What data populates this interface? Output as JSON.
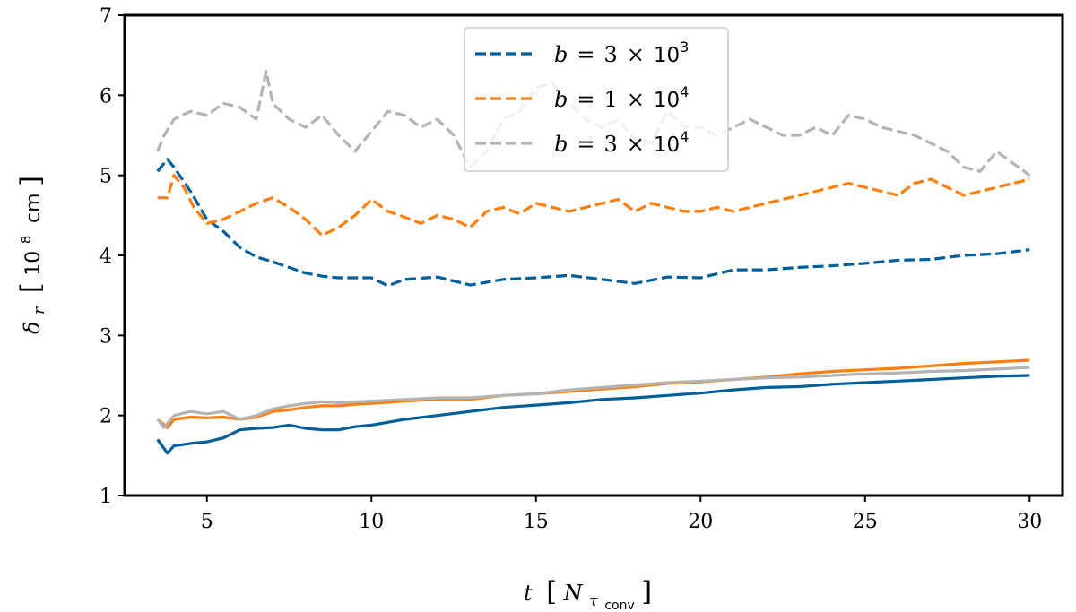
{
  "chart_data": {
    "type": "line",
    "xlabel": "t [N_τconv]",
    "xlabel_main": "t",
    "xlabel_unit": "N",
    "xlabel_sub1": "τ",
    "xlabel_sub2": "conv",
    "ylabel": "δr [10^8 cm]",
    "ylabel_main": "δ",
    "ylabel_sub": "r",
    "ylabel_unit_base": "10",
    "ylabel_unit_exp": "8",
    "ylabel_unit_rest": "cm",
    "xlim": [
      2.5,
      31.0
    ],
    "ylim": [
      1,
      7
    ],
    "xticks": [
      5,
      10,
      15,
      20,
      25,
      30
    ],
    "yticks": [
      1,
      2,
      3,
      4,
      5,
      6,
      7
    ],
    "legend_position": "upper-center",
    "legend_entries": [
      {
        "name": "b = 3 × 10³",
        "var": "b",
        "rel": "=",
        "mant": "3",
        "times": "×",
        "base": "10",
        "exp": "3",
        "color": "#005f99"
      },
      {
        "name": "b = 1 × 10⁴",
        "var": "b",
        "rel": "=",
        "mant": "1",
        "times": "×",
        "base": "10",
        "exp": "4",
        "color": "#ff7f0e"
      },
      {
        "name": "b = 3 × 10⁴",
        "var": "b",
        "rel": "=",
        "mant": "3",
        "times": "×",
        "base": "10",
        "exp": "4",
        "color": "#b3b3b3"
      }
    ],
    "series": [
      {
        "name": "b = 3 × 10³ (dashed)",
        "style": "dashed",
        "color": "#005f99",
        "x": [
          3.5,
          3.8,
          4.0,
          4.5,
          5.0,
          5.5,
          6.0,
          6.5,
          7.0,
          7.5,
          8.0,
          8.5,
          9.0,
          10.0,
          10.5,
          11.0,
          12.0,
          13.0,
          14.0,
          15.0,
          16.0,
          17.0,
          18.0,
          19.0,
          20.0,
          21.0,
          22.0,
          23.0,
          24.0,
          25.0,
          26.0,
          27.0,
          28.0,
          29.0,
          30.0
        ],
        "y": [
          5.05,
          5.2,
          5.1,
          4.8,
          4.45,
          4.3,
          4.1,
          3.98,
          3.92,
          3.85,
          3.78,
          3.74,
          3.72,
          3.72,
          3.62,
          3.7,
          3.73,
          3.63,
          3.7,
          3.72,
          3.75,
          3.7,
          3.65,
          3.73,
          3.72,
          3.82,
          3.82,
          3.85,
          3.87,
          3.9,
          3.94,
          3.95,
          4.0,
          4.02,
          4.07
        ]
      },
      {
        "name": "b = 1 × 10⁴ (dashed)",
        "style": "dashed",
        "color": "#ff7f0e",
        "x": [
          3.5,
          3.8,
          4.0,
          4.3,
          4.6,
          5.0,
          5.5,
          6.0,
          6.5,
          7.0,
          7.5,
          8.0,
          8.5,
          9.0,
          9.5,
          10.0,
          10.5,
          11.0,
          11.5,
          12.0,
          12.5,
          13.0,
          13.5,
          14.0,
          14.5,
          15.0,
          15.5,
          16.0,
          16.5,
          17.0,
          17.5,
          18.0,
          18.5,
          19.0,
          19.5,
          20.0,
          20.5,
          21.0,
          21.5,
          22.0,
          22.5,
          23.0,
          23.5,
          24.0,
          24.5,
          25.0,
          25.5,
          26.0,
          26.5,
          27.0,
          27.5,
          28.0,
          28.5,
          29.0,
          29.5,
          30.0
        ],
        "y": [
          4.72,
          4.72,
          5.0,
          4.85,
          4.6,
          4.4,
          4.45,
          4.55,
          4.65,
          4.72,
          4.6,
          4.45,
          4.25,
          4.35,
          4.5,
          4.7,
          4.55,
          4.48,
          4.4,
          4.5,
          4.45,
          4.35,
          4.55,
          4.6,
          4.52,
          4.65,
          4.6,
          4.55,
          4.6,
          4.65,
          4.7,
          4.55,
          4.65,
          4.6,
          4.55,
          4.55,
          4.6,
          4.55,
          4.6,
          4.65,
          4.7,
          4.75,
          4.8,
          4.85,
          4.9,
          4.85,
          4.8,
          4.75,
          4.9,
          4.95,
          4.85,
          4.75,
          4.8,
          4.85,
          4.9,
          4.95
        ]
      },
      {
        "name": "b = 3 × 10⁴ (dashed)",
        "style": "dashed",
        "color": "#b3b3b3",
        "x": [
          3.5,
          3.7,
          4.0,
          4.5,
          5.0,
          5.5,
          6.0,
          6.5,
          6.8,
          7.0,
          7.5,
          8.0,
          8.5,
          9.0,
          9.5,
          10.0,
          10.5,
          11.0,
          11.5,
          12.0,
          12.5,
          13.0,
          13.5,
          14.0,
          14.5,
          15.0,
          15.5,
          16.0,
          16.5,
          17.0,
          17.5,
          18.0,
          18.5,
          19.0,
          19.5,
          20.0,
          20.5,
          21.0,
          21.5,
          22.0,
          22.5,
          23.0,
          23.5,
          24.0,
          24.5,
          25.0,
          25.5,
          26.0,
          26.5,
          27.0,
          27.5,
          28.0,
          28.5,
          29.0,
          29.5,
          30.0
        ],
        "y": [
          5.3,
          5.5,
          5.7,
          5.8,
          5.75,
          5.9,
          5.85,
          5.7,
          6.3,
          5.9,
          5.7,
          5.6,
          5.75,
          5.5,
          5.3,
          5.55,
          5.8,
          5.75,
          5.6,
          5.7,
          5.5,
          5.1,
          5.3,
          5.7,
          5.8,
          6.1,
          6.15,
          5.9,
          5.7,
          5.6,
          5.7,
          5.45,
          5.4,
          5.8,
          5.6,
          5.6,
          5.5,
          5.6,
          5.7,
          5.6,
          5.5,
          5.5,
          5.6,
          5.5,
          5.75,
          5.7,
          5.6,
          5.55,
          5.5,
          5.4,
          5.3,
          5.1,
          5.05,
          5.3,
          5.15,
          5.0
        ]
      },
      {
        "name": "b = 3 × 10³ (solid)",
        "style": "solid",
        "color": "#005f99",
        "x": [
          3.5,
          3.8,
          4.0,
          4.5,
          5.0,
          5.5,
          6.0,
          6.5,
          7.0,
          7.5,
          8.0,
          8.5,
          9.0,
          9.5,
          10.0,
          11.0,
          12.0,
          13.0,
          14.0,
          15.0,
          16.0,
          17.0,
          18.0,
          19.0,
          20.0,
          21.0,
          22.0,
          23.0,
          24.0,
          25.0,
          26.0,
          27.0,
          28.0,
          29.0,
          30.0
        ],
        "y": [
          1.7,
          1.53,
          1.62,
          1.65,
          1.67,
          1.72,
          1.82,
          1.84,
          1.85,
          1.88,
          1.84,
          1.82,
          1.82,
          1.86,
          1.88,
          1.95,
          2.0,
          2.05,
          2.1,
          2.13,
          2.16,
          2.2,
          2.22,
          2.25,
          2.28,
          2.32,
          2.35,
          2.36,
          2.39,
          2.41,
          2.43,
          2.45,
          2.47,
          2.49,
          2.5
        ]
      },
      {
        "name": "b = 1 × 10⁴ (solid)",
        "style": "solid",
        "color": "#ff7f0e",
        "x": [
          3.5,
          3.8,
          4.0,
          4.5,
          5.0,
          5.5,
          6.0,
          6.5,
          7.0,
          7.5,
          8.0,
          8.5,
          9.0,
          9.5,
          10.0,
          11.0,
          12.0,
          13.0,
          14.0,
          15.0,
          16.0,
          17.0,
          18.0,
          19.0,
          20.0,
          21.0,
          22.0,
          23.0,
          24.0,
          25.0,
          26.0,
          27.0,
          28.0,
          29.0,
          30.0
        ],
        "y": [
          1.95,
          1.85,
          1.95,
          1.98,
          1.97,
          1.98,
          1.95,
          1.98,
          2.05,
          2.07,
          2.1,
          2.12,
          2.12,
          2.14,
          2.15,
          2.18,
          2.2,
          2.2,
          2.25,
          2.27,
          2.3,
          2.33,
          2.36,
          2.4,
          2.42,
          2.45,
          2.48,
          2.52,
          2.55,
          2.57,
          2.59,
          2.62,
          2.65,
          2.67,
          2.69
        ]
      },
      {
        "name": "b = 3 × 10⁴ (solid)",
        "style": "solid",
        "color": "#b3b3b3",
        "x": [
          3.5,
          3.7,
          4.0,
          4.5,
          5.0,
          5.5,
          6.0,
          6.5,
          7.0,
          7.5,
          8.0,
          8.5,
          9.0,
          9.5,
          10.0,
          11.0,
          12.0,
          13.0,
          14.0,
          15.0,
          16.0,
          17.0,
          18.0,
          19.0,
          20.0,
          21.0,
          22.0,
          23.0,
          24.0,
          25.0,
          26.0,
          27.0,
          28.0,
          29.0,
          30.0
        ],
        "y": [
          1.95,
          1.85,
          2.0,
          2.05,
          2.02,
          2.05,
          1.95,
          2.0,
          2.08,
          2.12,
          2.15,
          2.17,
          2.16,
          2.17,
          2.18,
          2.2,
          2.22,
          2.22,
          2.25,
          2.27,
          2.32,
          2.35,
          2.38,
          2.41,
          2.43,
          2.45,
          2.47,
          2.48,
          2.5,
          2.52,
          2.53,
          2.55,
          2.56,
          2.58,
          2.6
        ]
      }
    ]
  }
}
